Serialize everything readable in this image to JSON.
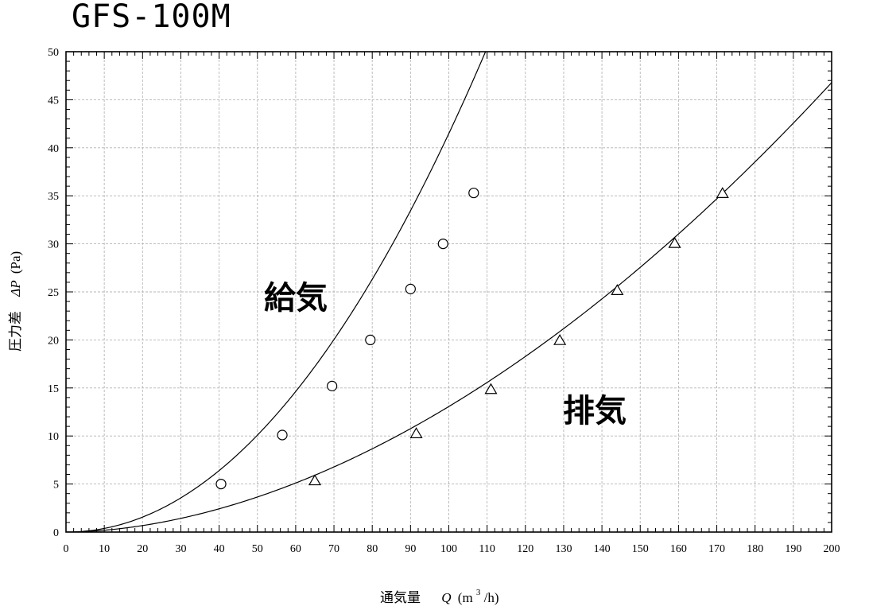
{
  "title": "GFS-100M",
  "chart_data": {
    "type": "line",
    "xlabel": {
      "main": "通気量",
      "sym": "Q",
      "unit_pre": "(m",
      "unit_sup": "3",
      "unit_post": "/h)"
    },
    "ylabel": {
      "main": "圧力差",
      "sym": "ΔP",
      "unit": "(Pa)"
    },
    "xlim": [
      0,
      200
    ],
    "ylim": [
      0,
      50
    ],
    "x_ticks": [
      0,
      10,
      20,
      30,
      40,
      50,
      60,
      70,
      80,
      90,
      100,
      110,
      120,
      130,
      140,
      150,
      160,
      170,
      180,
      190,
      200
    ],
    "y_ticks": [
      0,
      5,
      10,
      15,
      20,
      25,
      30,
      35,
      40,
      45,
      50
    ],
    "grid": true,
    "series": [
      {
        "name": "給気",
        "marker": "circle",
        "points": [
          [
            40.5,
            5.0
          ],
          [
            56.5,
            10.1
          ],
          [
            69.5,
            15.2
          ],
          [
            79.5,
            20.0
          ],
          [
            90.0,
            25.3
          ],
          [
            98.5,
            30.0
          ],
          [
            106.5,
            35.3
          ]
        ],
        "curve": {
          "coef": 0.00345,
          "exp": 2.04,
          "x_end": 126.5
        }
      },
      {
        "name": "排気",
        "marker": "triangle",
        "points": [
          [
            65.0,
            5.3
          ],
          [
            91.5,
            10.2
          ],
          [
            111.0,
            14.8
          ],
          [
            129.0,
            19.9
          ],
          [
            144.0,
            25.1
          ],
          [
            159.0,
            30.0
          ],
          [
            171.5,
            35.2
          ]
        ],
        "curve": {
          "coef": 0.00273,
          "exp": 1.84,
          "x_end": 200
        }
      }
    ]
  }
}
